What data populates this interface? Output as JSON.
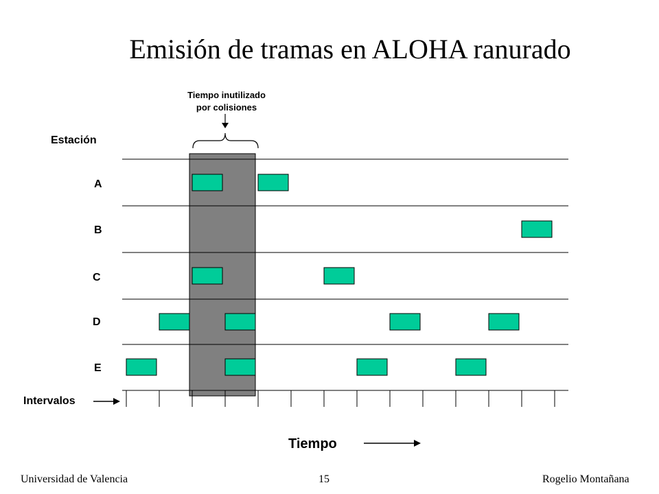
{
  "title": "Emisión de tramas en ALOHA ranurado",
  "annotation": {
    "line1": "Tiempo inutilizado",
    "line2": "por colisiones"
  },
  "axis": {
    "station_label": "Estación",
    "intervals_label": "Intervalos",
    "time_label": "Tiempo"
  },
  "stations": [
    "A",
    "B",
    "C",
    "D",
    "E"
  ],
  "slots": 13,
  "collision_slots": [
    2,
    3
  ],
  "frames": [
    {
      "station": "A",
      "slots": [
        2,
        4
      ]
    },
    {
      "station": "B",
      "slots": [
        12
      ]
    },
    {
      "station": "C",
      "slots": [
        2,
        6
      ]
    },
    {
      "station": "D",
      "slots": [
        1,
        3,
        8,
        11
      ]
    },
    {
      "station": "E",
      "slots": [
        0,
        3,
        7,
        10
      ]
    }
  ],
  "colors": {
    "frame": "#00CC99",
    "collision": "#808080",
    "line": "#000000"
  },
  "footer": {
    "left": "Universidad de Valencia",
    "center": "15",
    "right": "Rogelio Montañana"
  }
}
